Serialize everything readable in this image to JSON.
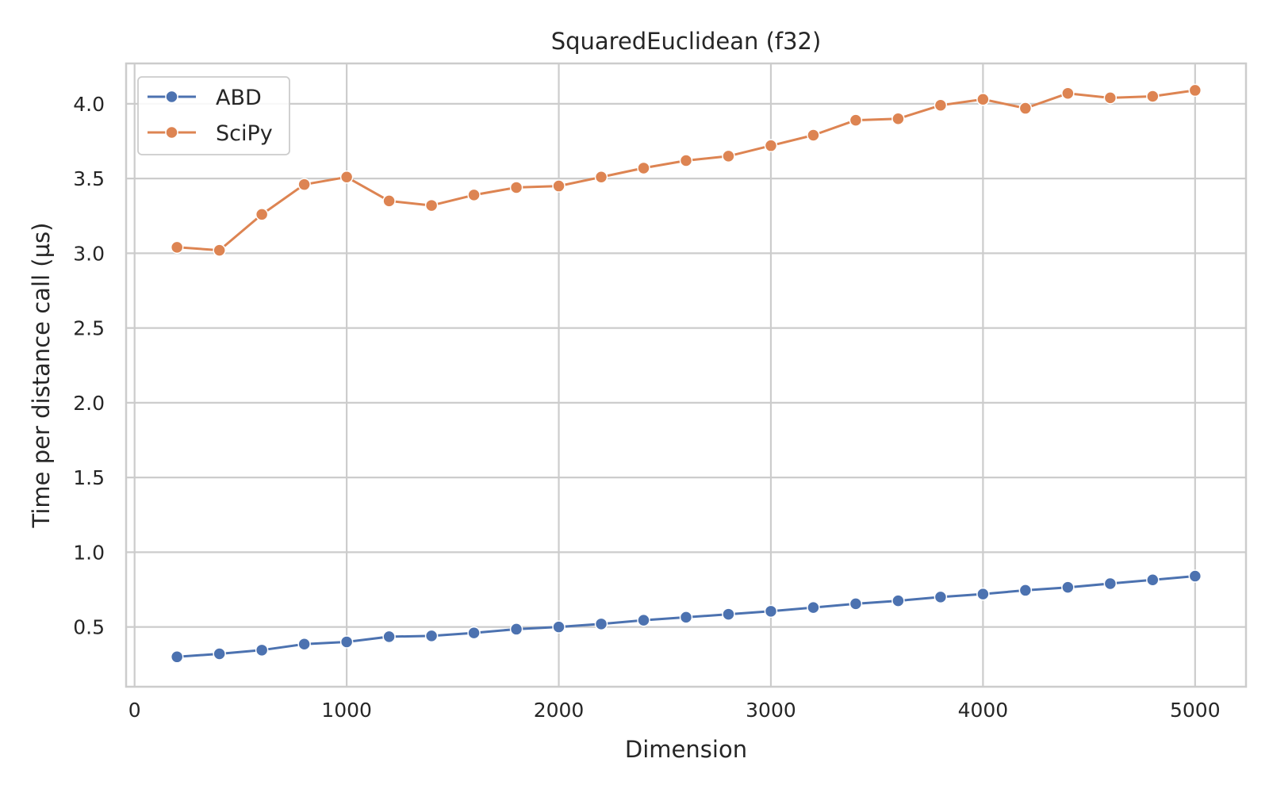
{
  "chart_data": {
    "type": "line",
    "title": "SquaredEuclidean (f32)",
    "xlabel": "Dimension",
    "ylabel": "Time per distance call (µs)",
    "xlim": [
      -40,
      5240
    ],
    "ylim": [
      0.1,
      4.27
    ],
    "xticks": [
      0,
      1000,
      2000,
      3000,
      4000,
      5000
    ],
    "yticks": [
      0.5,
      1.0,
      1.5,
      2.0,
      2.5,
      3.0,
      3.5,
      4.0
    ],
    "xtick_labels": [
      "0",
      "1000",
      "2000",
      "3000",
      "4000",
      "5000"
    ],
    "ytick_labels": [
      "0.5",
      "1.0",
      "1.5",
      "2.0",
      "2.5",
      "3.0",
      "3.5",
      "4.0"
    ],
    "grid": true,
    "legend_position": "top-left",
    "x": [
      200,
      400,
      600,
      800,
      1000,
      1200,
      1400,
      1600,
      1800,
      2000,
      2200,
      2400,
      2600,
      2800,
      3000,
      3200,
      3400,
      3600,
      3800,
      4000,
      4200,
      4400,
      4600,
      4800,
      5000
    ],
    "series": [
      {
        "name": "ABD",
        "color": "#4c72b0",
        "values": [
          0.3,
          0.32,
          0.345,
          0.385,
          0.4,
          0.435,
          0.44,
          0.46,
          0.485,
          0.5,
          0.52,
          0.545,
          0.565,
          0.585,
          0.605,
          0.63,
          0.655,
          0.675,
          0.7,
          0.72,
          0.745,
          0.765,
          0.79,
          0.815,
          0.84
        ]
      },
      {
        "name": "SciPy",
        "color": "#dd8452",
        "values": [
          3.04,
          3.02,
          3.26,
          3.46,
          3.51,
          3.35,
          3.32,
          3.39,
          3.44,
          3.45,
          3.51,
          3.57,
          3.62,
          3.65,
          3.72,
          3.79,
          3.89,
          3.9,
          3.99,
          4.03,
          3.97,
          4.07,
          4.04,
          4.05,
          4.09
        ]
      }
    ]
  }
}
